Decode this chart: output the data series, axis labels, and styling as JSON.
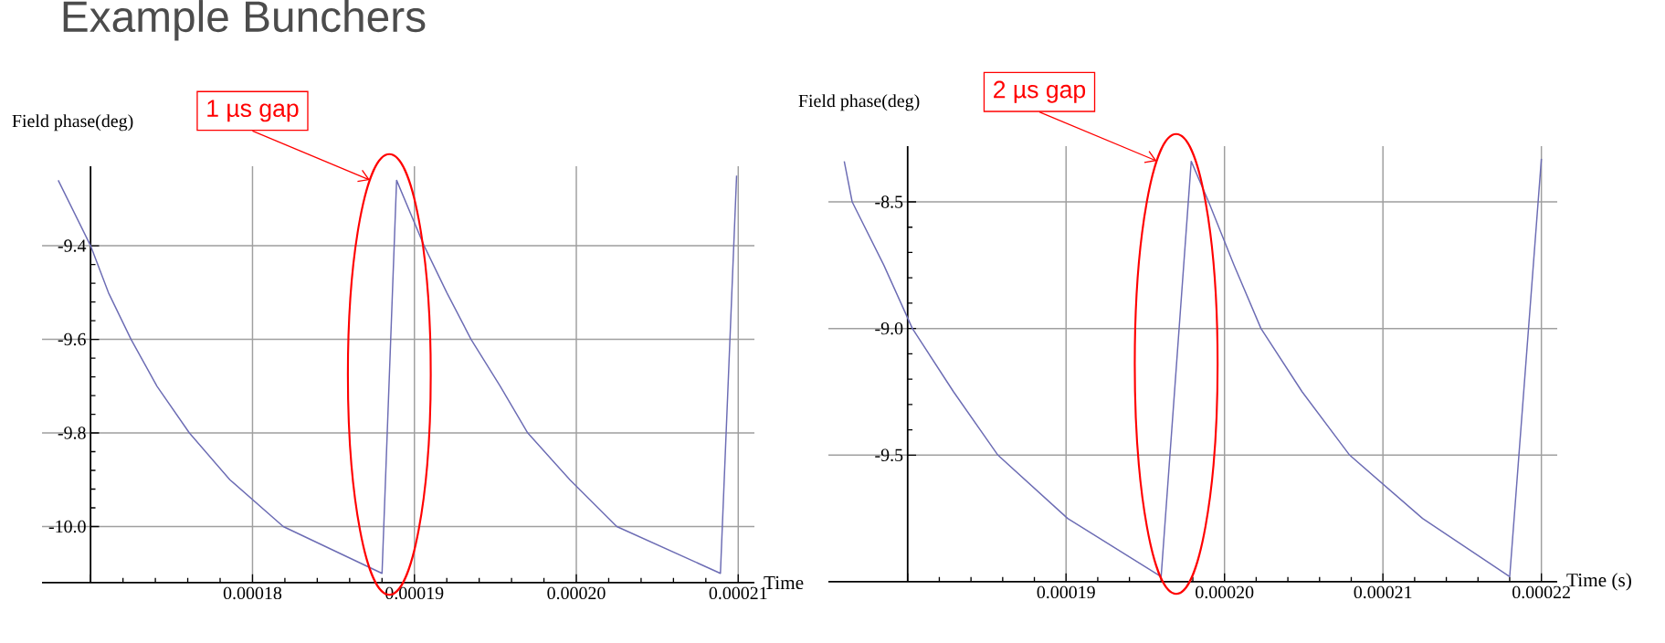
{
  "chart_data": [
    {
      "type": "line",
      "title": "Example Bunchers",
      "xlabel": "Time",
      "ylabel": "Field phase(deg)",
      "color": "#6c6cb4",
      "grid": true,
      "x": [
        0.000168,
        0.00017,
        0.0001711,
        0.0001725,
        0.0001741,
        0.0001761,
        0.0001786,
        0.0001819,
        0.000188,
        0.0001889,
        0.0001906,
        0.000192,
        0.0001935,
        0.0001953,
        0.000197,
        0.0001996,
        0.0002025,
        0.0002089,
        0.0002099
      ],
      "values": [
        -9.26,
        -9.4,
        -9.5,
        -9.6,
        -9.7,
        -9.8,
        -9.9,
        -10.0,
        -10.1,
        -9.26,
        -9.4,
        -9.5,
        -9.6,
        -9.7,
        -9.8,
        -9.9,
        -10.0,
        -10.1,
        -9.25
      ],
      "xlim": [
        0.000167,
        0.000211
      ],
      "ylim": [
        -10.12,
        -9.23
      ],
      "xticks": [
        {
          "value": 0.00017,
          "label": null
        },
        0.00018,
        0.00019,
        {
          "value": 0.0002,
          "label": "0.00020"
        },
        0.00021
      ],
      "yticks": [
        {
          "value": -10.0,
          "label": "-10.0"
        },
        -9.8,
        -9.6,
        -9.4
      ],
      "annotations": [
        "1 µs gap"
      ]
    },
    {
      "type": "line",
      "xlabel": "Time (s)",
      "ylabel": "Field phase(deg)",
      "color": "#6c6cb4",
      "grid": true,
      "x": [
        0.000176,
        0.0001765,
        0.0001785,
        0.0001803,
        0.0001829,
        0.0001857,
        0.0001901,
        0.000196,
        0.0001979,
        0.000199,
        0.0002006,
        0.0002023,
        0.0002049,
        0.0002079,
        0.0002125,
        0.000218,
        0.00022
      ],
      "values": [
        -8.34,
        -8.5,
        -8.75,
        -9.0,
        -9.25,
        -9.5,
        -9.75,
        -9.98,
        -8.34,
        -8.5,
        -8.75,
        -9.0,
        -9.25,
        -9.5,
        -9.75,
        -9.98,
        -8.33
      ],
      "xlim": [
        0.000175,
        0.000221
      ],
      "ylim": [
        -10.0,
        -8.28
      ],
      "xticks": [
        {
          "value": 0.00018,
          "label": null
        },
        0.00019,
        {
          "value": 0.0002,
          "label": "0.00020"
        },
        0.00021,
        0.00022
      ],
      "yticks": [
        -9.5,
        {
          "value": -9.0,
          "label": "-9.0"
        },
        -8.5
      ],
      "annotations": [
        "2 µs gap"
      ]
    }
  ]
}
